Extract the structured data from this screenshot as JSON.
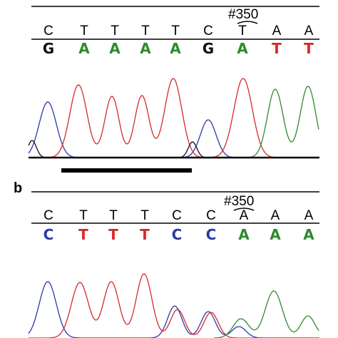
{
  "colors": {
    "A": "#2e8b2e",
    "C": "#2b3aa8",
    "G": "#111111",
    "T": "#d62a2a",
    "ref": "#000000"
  },
  "panel_a": {
    "position_label": "#350",
    "reference": [
      "C",
      "T",
      "T",
      "T",
      "T",
      "C",
      "T",
      "A",
      "A"
    ],
    "called": [
      "G",
      "A",
      "A",
      "A",
      "A",
      "G",
      "A",
      "T",
      "T"
    ]
  },
  "panel_b": {
    "label": "b",
    "position_label": "#350",
    "reference": [
      "C",
      "T",
      "T",
      "T",
      "C",
      "C",
      "A",
      "A",
      "A"
    ],
    "called": [
      "C",
      "T",
      "T",
      "T",
      "C",
      "C",
      "A",
      "A",
      "A"
    ]
  }
}
